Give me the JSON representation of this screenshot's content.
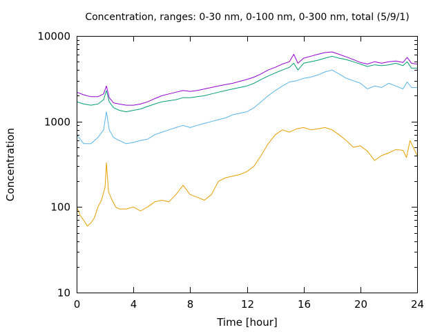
{
  "chart_data": {
    "type": "line",
    "title": "Concentration, ranges: 0-30 nm, 0-100 nm, 0-300 nm, total (5/9/1)",
    "xlabel": "Time [hour]",
    "ylabel": "Concentration",
    "xlim": [
      0,
      24
    ],
    "ylim": [
      10,
      10000
    ],
    "yscale": "log",
    "grid": false,
    "legend": "none",
    "x_ticks": [
      0,
      4,
      8,
      12,
      16,
      20,
      24
    ],
    "x_tick_labels": [
      "0",
      "4",
      "8",
      "12",
      "16",
      "20",
      "24"
    ],
    "y_ticks": [
      10,
      100,
      1000,
      10000
    ],
    "y_tick_labels": [
      "10",
      "100",
      "1000",
      "10000"
    ],
    "series": [
      {
        "color": "#e69f00",
        "x": [
          0,
          0.25,
          0.5,
          0.75,
          1.0,
          1.25,
          1.5,
          1.75,
          2.0,
          2.1,
          2.25,
          2.5,
          2.75,
          3.0,
          3.5,
          4.0,
          4.5,
          5.0,
          5.5,
          6.0,
          6.5,
          7.0,
          7.5,
          8.0,
          8.5,
          9.0,
          9.5,
          10.0,
          10.5,
          11.0,
          11.5,
          12.0,
          12.5,
          13.0,
          13.5,
          14.0,
          14.5,
          15.0,
          15.5,
          16.0,
          16.5,
          17.0,
          17.5,
          18.0,
          18.5,
          19.0,
          19.5,
          20.0,
          20.5,
          21.0,
          21.5,
          22.0,
          22.5,
          23.0,
          23.25,
          23.5,
          24.0
        ],
        "values": [
          100,
          80,
          70,
          60,
          65,
          75,
          100,
          120,
          170,
          330,
          150,
          120,
          100,
          95,
          95,
          100,
          90,
          100,
          115,
          120,
          115,
          140,
          180,
          140,
          130,
          120,
          140,
          200,
          220,
          230,
          240,
          260,
          300,
          400,
          550,
          700,
          800,
          750,
          820,
          850,
          800,
          820,
          850,
          800,
          700,
          600,
          500,
          520,
          450,
          350,
          400,
          430,
          470,
          460,
          380,
          600,
          400
        ]
      },
      {
        "color": "#56b4e9",
        "x": [
          0,
          0.5,
          1.0,
          1.5,
          1.9,
          2.1,
          2.3,
          2.6,
          3.0,
          3.5,
          4.0,
          4.5,
          5.0,
          5.5,
          6.0,
          6.5,
          7.0,
          7.5,
          8.0,
          8.5,
          9.0,
          9.5,
          10.0,
          10.5,
          11.0,
          11.5,
          12.0,
          12.5,
          13.0,
          13.5,
          14.0,
          14.5,
          15.0,
          15.5,
          16.0,
          16.5,
          17.0,
          17.5,
          18.0,
          18.5,
          19.0,
          19.5,
          20.0,
          20.5,
          21.0,
          21.5,
          22.0,
          22.5,
          23.0,
          23.3,
          23.6,
          24.0
        ],
        "values": [
          700,
          550,
          550,
          650,
          800,
          1300,
          800,
          650,
          600,
          550,
          570,
          600,
          620,
          700,
          750,
          800,
          850,
          900,
          850,
          900,
          950,
          1000,
          1050,
          1100,
          1200,
          1250,
          1300,
          1450,
          1700,
          2000,
          2300,
          2600,
          2900,
          3000,
          3200,
          3300,
          3500,
          3800,
          4000,
          3600,
          3200,
          3000,
          2800,
          2400,
          2600,
          2500,
          2800,
          2600,
          2400,
          2900,
          2500,
          2500
        ]
      },
      {
        "color": "#009e73",
        "x": [
          0,
          0.5,
          1.0,
          1.5,
          1.9,
          2.1,
          2.3,
          2.6,
          3.0,
          3.5,
          4.0,
          4.5,
          5.0,
          5.5,
          6.0,
          6.5,
          7.0,
          7.5,
          8.0,
          8.5,
          9.0,
          9.5,
          10.0,
          10.5,
          11.0,
          11.5,
          12.0,
          12.5,
          13.0,
          13.5,
          14.0,
          14.5,
          15.0,
          15.3,
          15.6,
          16.0,
          16.5,
          17.0,
          17.5,
          18.0,
          18.5,
          19.0,
          19.5,
          20.0,
          20.5,
          21.0,
          21.5,
          22.0,
          22.5,
          23.0,
          23.3,
          23.6,
          24.0
        ],
        "values": [
          1700,
          1600,
          1550,
          1600,
          1800,
          2300,
          1700,
          1450,
          1350,
          1300,
          1350,
          1400,
          1500,
          1600,
          1700,
          1750,
          1800,
          1900,
          1900,
          1950,
          2000,
          2100,
          2200,
          2300,
          2400,
          2500,
          2600,
          2800,
          3100,
          3400,
          3700,
          4000,
          4300,
          4800,
          4000,
          4800,
          5000,
          5200,
          5500,
          5800,
          5500,
          5300,
          5000,
          4700,
          4400,
          4600,
          4500,
          4600,
          4800,
          4500,
          5000,
          4200,
          4200
        ]
      },
      {
        "color": "#9400d3",
        "x": [
          0,
          0.5,
          1.0,
          1.5,
          1.9,
          2.1,
          2.3,
          2.6,
          3.0,
          3.5,
          4.0,
          4.5,
          5.0,
          5.5,
          6.0,
          6.5,
          7.0,
          7.5,
          8.0,
          8.5,
          9.0,
          9.5,
          10.0,
          10.5,
          11.0,
          11.5,
          12.0,
          12.5,
          13.0,
          13.5,
          14.0,
          14.5,
          15.0,
          15.3,
          15.6,
          16.0,
          16.5,
          17.0,
          17.5,
          18.0,
          18.5,
          19.0,
          19.5,
          20.0,
          20.5,
          21.0,
          21.5,
          22.0,
          22.5,
          23.0,
          23.3,
          23.6,
          24.0
        ],
        "values": [
          2200,
          2050,
          1950,
          1950,
          2100,
          2600,
          1900,
          1650,
          1600,
          1550,
          1550,
          1600,
          1700,
          1850,
          2000,
          2100,
          2200,
          2300,
          2250,
          2300,
          2400,
          2500,
          2600,
          2700,
          2800,
          2950,
          3100,
          3300,
          3600,
          4000,
          4300,
          4700,
          5000,
          6100,
          4800,
          5500,
          5800,
          6100,
          6400,
          6500,
          6100,
          5700,
          5300,
          4900,
          4700,
          5000,
          4800,
          5000,
          5100,
          4900,
          5600,
          4800,
          4700
        ]
      }
    ]
  }
}
